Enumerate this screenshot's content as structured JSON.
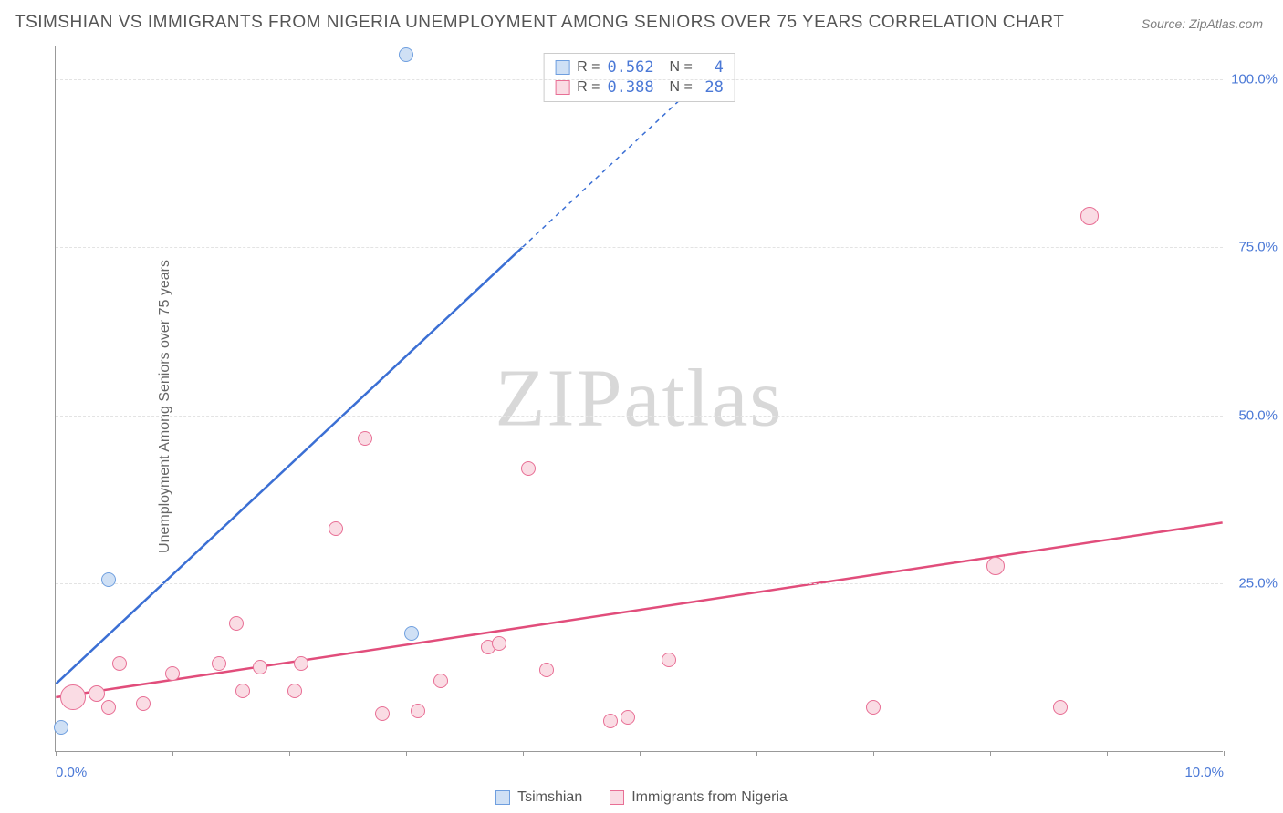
{
  "title": "TSIMSHIAN VS IMMIGRANTS FROM NIGERIA UNEMPLOYMENT AMONG SENIORS OVER 75 YEARS CORRELATION CHART",
  "source": "Source: ZipAtlas.com",
  "ylabel": "Unemployment Among Seniors over 75 years",
  "watermark_a": "ZIP",
  "watermark_b": "atlas",
  "chart": {
    "type": "scatter",
    "background_color": "#ffffff",
    "grid_color": "#e3e3e3",
    "axis_color": "#999999",
    "label_color": "#666666",
    "tick_label_color": "#4a78d6",
    "xlim": [
      0,
      10
    ],
    "ylim": [
      0,
      105
    ],
    "xticks": [
      0,
      1,
      2,
      3,
      4,
      5,
      6,
      7,
      8,
      9,
      10
    ],
    "xtick_labels": {
      "0": "0.0%",
      "10": "10.0%"
    },
    "ytick_values": [
      25,
      50,
      75,
      100
    ],
    "ytick_labels": [
      "25.0%",
      "50.0%",
      "75.0%",
      "100.0%"
    ],
    "series": [
      {
        "name": "Tsimshian",
        "color_fill": "#cfe0f5",
        "color_stroke": "#6f9fdf",
        "line_color": "#3b6fd4",
        "marker_radius": 8,
        "R": "0.562",
        "N": "4",
        "trend": {
          "x1": 0,
          "y1": 10,
          "x2": 4.0,
          "y2": 75,
          "dash_x2": 5.6,
          "dash_y2": 101
        },
        "points": [
          {
            "x": 0.05,
            "y": 3.5,
            "r": 8
          },
          {
            "x": 0.45,
            "y": 25.5,
            "r": 8
          },
          {
            "x": 3.05,
            "y": 17.5,
            "r": 8
          },
          {
            "x": 3.0,
            "y": 103.5,
            "r": 8
          }
        ]
      },
      {
        "name": "Immigrants from Nigeria",
        "color_fill": "#fadce4",
        "color_stroke": "#e86f95",
        "line_color": "#e14d7b",
        "marker_radius": 8,
        "R": "0.388",
        "N": "28",
        "trend": {
          "x1": 0,
          "y1": 8,
          "x2": 10,
          "y2": 34
        },
        "points": [
          {
            "x": 0.15,
            "y": 8.0,
            "r": 14
          },
          {
            "x": 0.35,
            "y": 8.5,
            "r": 9
          },
          {
            "x": 0.45,
            "y": 6.5,
            "r": 8
          },
          {
            "x": 0.55,
            "y": 13.0,
            "r": 8
          },
          {
            "x": 0.75,
            "y": 7.0,
            "r": 8
          },
          {
            "x": 1.0,
            "y": 11.5,
            "r": 8
          },
          {
            "x": 1.4,
            "y": 13.0,
            "r": 8
          },
          {
            "x": 1.55,
            "y": 19.0,
            "r": 8
          },
          {
            "x": 1.6,
            "y": 9.0,
            "r": 8
          },
          {
            "x": 1.75,
            "y": 12.5,
            "r": 8
          },
          {
            "x": 2.05,
            "y": 9.0,
            "r": 8
          },
          {
            "x": 2.1,
            "y": 13.0,
            "r": 8
          },
          {
            "x": 2.4,
            "y": 33.0,
            "r": 8
          },
          {
            "x": 2.65,
            "y": 46.5,
            "r": 8
          },
          {
            "x": 2.8,
            "y": 5.5,
            "r": 8
          },
          {
            "x": 3.1,
            "y": 6.0,
            "r": 8
          },
          {
            "x": 3.3,
            "y": 10.5,
            "r": 8
          },
          {
            "x": 3.7,
            "y": 15.5,
            "r": 8
          },
          {
            "x": 3.8,
            "y": 16.0,
            "r": 8
          },
          {
            "x": 4.05,
            "y": 42.0,
            "r": 8
          },
          {
            "x": 4.2,
            "y": 12.0,
            "r": 8
          },
          {
            "x": 4.75,
            "y": 4.5,
            "r": 8
          },
          {
            "x": 4.9,
            "y": 5.0,
            "r": 8
          },
          {
            "x": 5.25,
            "y": 13.5,
            "r": 8
          },
          {
            "x": 7.0,
            "y": 6.5,
            "r": 8
          },
          {
            "x": 8.05,
            "y": 27.5,
            "r": 10
          },
          {
            "x": 8.6,
            "y": 6.5,
            "r": 8
          },
          {
            "x": 8.85,
            "y": 79.5,
            "r": 10
          }
        ]
      }
    ]
  }
}
